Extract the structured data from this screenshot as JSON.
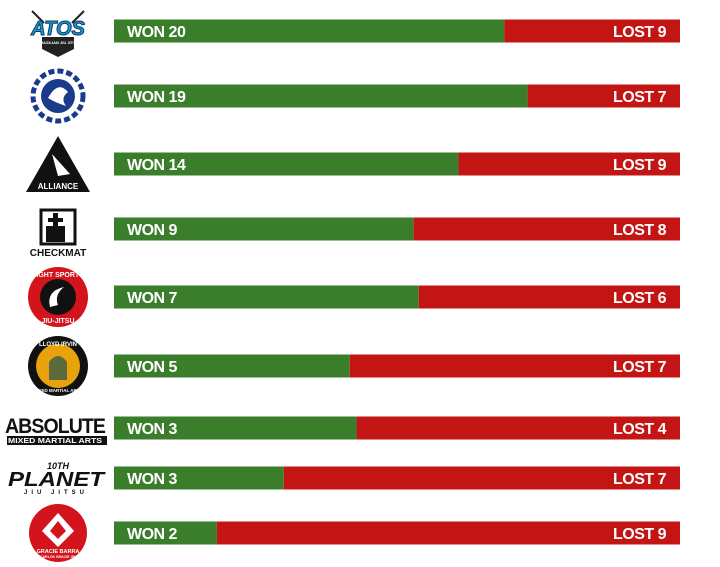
{
  "chart_data": {
    "type": "bar",
    "orientation": "horizontal",
    "stacked": true,
    "categories": [
      "Atos",
      "Nova União",
      "Alliance",
      "Checkmat",
      "Fight Sports",
      "Lloyd Irvin",
      "Absolute",
      "10th Planet",
      "Gracie Barra"
    ],
    "series": [
      {
        "values": [
          20,
          19,
          14,
          9,
          7,
          5,
          3,
          3,
          2
        ],
        "color": "#3a7d2a"
      },
      {
        "values": [
          9,
          7,
          9,
          8,
          6,
          7,
          4,
          7,
          9
        ],
        "color": "#c41515"
      }
    ],
    "labels": {
      "won": [
        "WON 20",
        "WON 19",
        "WON 14",
        "WON 9",
        "WON 7",
        "WON 5",
        "WON 3",
        "WON 3",
        "WON 2"
      ],
      "lost": [
        "LOST 9",
        "LOST 7",
        "LOST 9",
        "LOST 8",
        "LOST 6",
        "LOST 7",
        "LOST 4",
        "LOST 7",
        "LOST 9"
      ]
    },
    "grid": false,
    "legend": "none"
  },
  "logos": [
    {
      "name": "atos-logo",
      "text": "ATOS",
      "sub": "BRAZILIAN JIU JITSU",
      "color": "#1a9ad6"
    },
    {
      "name": "nova-uniao-logo",
      "text": "",
      "color": "#1a3b8c"
    },
    {
      "name": "alliance-logo",
      "text": "ALLIANCE",
      "color": "#111111"
    },
    {
      "name": "checkmat-logo",
      "text": "CHECKMAT",
      "color": "#111111"
    },
    {
      "name": "fight-sports-logo",
      "text": "FIGHT SPORTS",
      "sub": "JIU-JITSU",
      "color": "#d4141c"
    },
    {
      "name": "lloyd-irvin-logo",
      "text": "LLOYD IRVIN",
      "sub": "MIXED MARTIAL ARTS",
      "color": "#e8a20c"
    },
    {
      "name": "absolute-logo",
      "text": "ABSOLUTE",
      "sub": "MIXED MARTIAL ARTS",
      "color": "#111111"
    },
    {
      "name": "tenth-planet-logo",
      "text": "PLANET",
      "top": "10TH",
      "sub": "JIU JITSU",
      "color": "#111111"
    },
    {
      "name": "gracie-barra-logo",
      "text": "GRACIE BARRA",
      "sub": "CARLOS GRACIE JR.",
      "color": "#d4141c"
    }
  ]
}
